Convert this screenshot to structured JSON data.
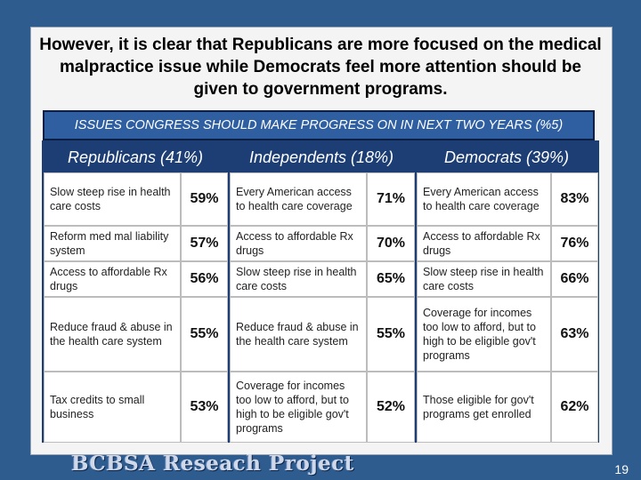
{
  "slide": {
    "title": "However, it is clear that Republicans are more focused on the medical malpractice issue while Democrats feel more attention should be given to government programs.",
    "banner": "ISSUES CONGRESS SHOULD MAKE PROGRESS ON IN NEXT TWO YEARS (%5)",
    "columns": [
      "Republicans (41%)",
      "Independents (18%)",
      "Democrats (39%)"
    ],
    "rows": [
      {
        "rep_issue": "Slow steep rise in health care costs",
        "rep_pct": "59%",
        "ind_issue": "Every American access to health care coverage",
        "ind_pct": "71%",
        "dem_issue": "Every American access to health care coverage",
        "dem_pct": "83%"
      },
      {
        "rep_issue": "Reform med mal liability system",
        "rep_pct": "57%",
        "ind_issue": "Access to affordable Rx drugs",
        "ind_pct": "70%",
        "dem_issue": "Access to affordable Rx drugs",
        "dem_pct": "76%"
      },
      {
        "rep_issue": "Access to affordable Rx drugs",
        "rep_pct": "56%",
        "ind_issue": "Slow steep rise in health care costs",
        "ind_pct": "65%",
        "dem_issue": "Slow steep rise in health care costs",
        "dem_pct": "66%"
      },
      {
        "rep_issue": "Reduce fraud & abuse in the health care system",
        "rep_pct": "55%",
        "ind_issue": "Reduce fraud & abuse in the health care system",
        "ind_pct": "55%",
        "dem_issue": "Coverage for incomes too low to afford, but to high to be eligible gov't programs",
        "dem_pct": "63%"
      },
      {
        "rep_issue": "Tax credits to small business",
        "rep_pct": "53%",
        "ind_issue": "Coverage for incomes too low to afford, but to high to be eligible gov't programs",
        "ind_pct": "52%",
        "dem_issue": "Those eligible for gov't programs get enrolled",
        "dem_pct": "62%"
      }
    ],
    "footer_logo": "BCBSA Reseach Project",
    "page_number": "19"
  }
}
